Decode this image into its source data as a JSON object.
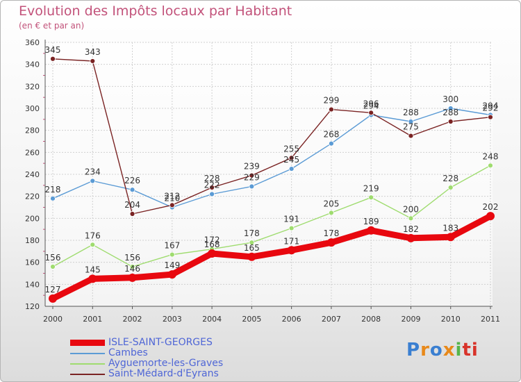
{
  "title": "Evolution des Impôts locaux par Habitant",
  "subtitle": "(en € et par an)",
  "logo": {
    "text": "Proxiti",
    "colors": [
      "#3a7fd1",
      "#e8891a",
      "#3a7fd1",
      "#e8891a",
      "#56b54a",
      "#d8332a",
      "#d8332a"
    ]
  },
  "chart_data": {
    "type": "line",
    "x": [
      "2000",
      "2001",
      "2002",
      "2003",
      "2004",
      "2005",
      "2006",
      "2007",
      "2008",
      "2009",
      "2010",
      "2011"
    ],
    "ylim": [
      120,
      360
    ],
    "yticks": [
      "120",
      "140",
      "160",
      "180",
      "200",
      "220",
      "240",
      "260",
      "280",
      "300",
      "320",
      "340",
      "360"
    ],
    "grid": true,
    "legend_position": "bottom-left",
    "series": [
      {
        "name": "ISLE-SAINT-GEORGES",
        "color": "#e8080f",
        "values": [
          127,
          145,
          146,
          149,
          168,
          165,
          171,
          178,
          189,
          182,
          183,
          202
        ],
        "labels": [
          "127",
          "145",
          "146",
          "149",
          "168",
          "165",
          "171",
          "178",
          "189",
          "182",
          "183",
          "202"
        ]
      },
      {
        "name": "Cambes",
        "color": "#5b9bd5",
        "values": [
          218,
          234,
          226,
          210,
          222,
          229,
          245,
          268,
          294,
          288,
          300,
          294
        ],
        "labels": [
          "218",
          "234",
          "226",
          "210",
          "222",
          "229",
          "245",
          "268",
          "294",
          "288",
          "300",
          "294"
        ]
      },
      {
        "name": "Ayguemorte-les-Graves",
        "color": "#9fdc6f",
        "values": [
          156,
          176,
          156,
          167,
          172,
          178,
          191,
          205,
          219,
          200,
          228,
          248
        ],
        "labels": [
          "156",
          "176",
          "156",
          "167",
          "172",
          "178",
          "191",
          "205",
          "219",
          "200",
          "228",
          "248"
        ]
      },
      {
        "name": "Saint-Médard-d'Eyrans",
        "color": "#7a2323",
        "values": [
          345,
          343,
          204,
          212,
          228,
          239,
          255,
          299,
          296,
          275,
          288,
          292
        ],
        "labels": [
          "345",
          "343",
          "204",
          "212",
          "228",
          "239",
          "255",
          "299",
          "296",
          "275",
          "288",
          "292"
        ]
      }
    ]
  }
}
